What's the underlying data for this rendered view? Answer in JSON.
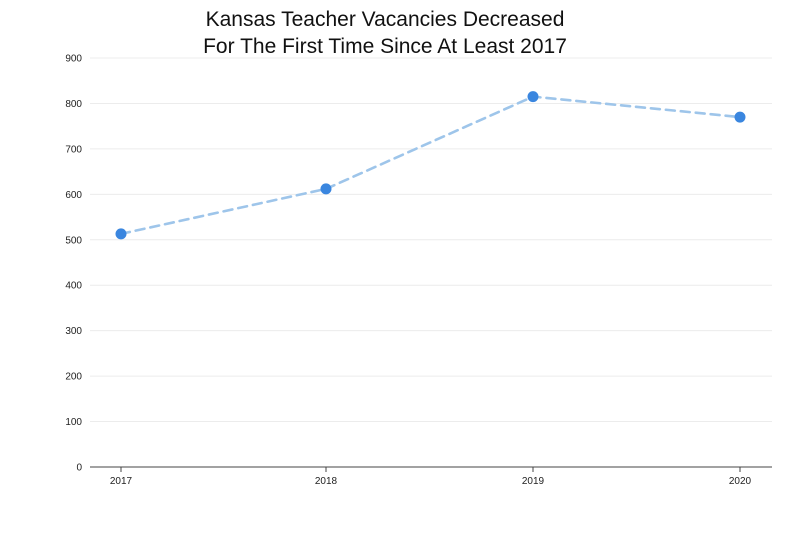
{
  "chart_data": {
    "type": "line",
    "title_lines": [
      "Kansas Teacher Vacancies Decreased",
      "For The First Time Since At Least 2017"
    ],
    "xlabel": "",
    "ylabel": "",
    "categories": [
      "2017",
      "2018",
      "2019",
      "2020"
    ],
    "series": [
      {
        "values": [
          513,
          612,
          815,
          770
        ]
      }
    ],
    "ylim": [
      0,
      900
    ],
    "yticks": [
      0,
      100,
      200,
      300,
      400,
      500,
      600,
      700,
      800,
      900
    ],
    "grid": true,
    "line_style": "dashed",
    "line_color": "#9ec5ea",
    "marker_color": "#3a86df",
    "grid_color": "#ececec",
    "axis_color": "#444444"
  }
}
